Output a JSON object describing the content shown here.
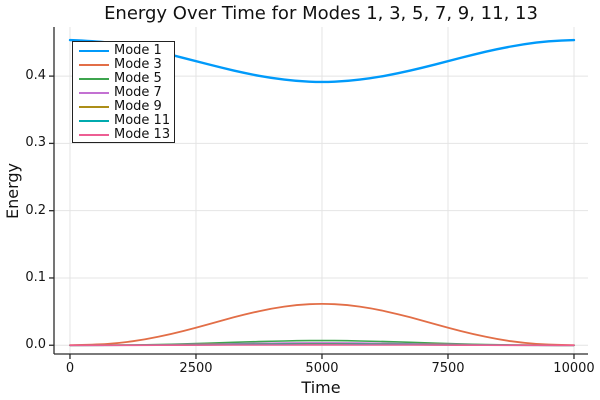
{
  "page": {
    "background": "#FFFFFF",
    "text_color": "#111111",
    "grid_color": "#E4E4E4",
    "axis_color": "#2B2B2B"
  },
  "chart_data": {
    "type": "line",
    "title": "Energy Over Time for Modes 1, 3, 5, 7, 9, 11, 13",
    "xlabel": "Time",
    "ylabel": "Energy",
    "grid": true,
    "legend_position": "top-left",
    "xlim": [
      -317,
      10278
    ],
    "ylim": [
      -0.013,
      0.473
    ],
    "x_ticks": {
      "values": [
        0,
        2500,
        5000,
        7500,
        10000
      ],
      "labels": [
        "0",
        "2500",
        "5000",
        "7500",
        "10000"
      ]
    },
    "y_ticks": {
      "values": [
        0.0,
        0.1,
        0.2,
        0.3,
        0.4
      ],
      "labels": [
        "0.0",
        "0.1",
        "0.2",
        "0.3",
        "0.4"
      ]
    },
    "x": [
      0,
      500,
      1000,
      1500,
      2000,
      2500,
      3000,
      3500,
      4000,
      4500,
      5000,
      5500,
      6000,
      6500,
      7000,
      7500,
      8000,
      8500,
      9000,
      9500,
      10000
    ],
    "series": [
      {
        "name": "Mode 1",
        "color": "#009AFA",
        "width": 2.4,
        "values": [
          0.4535,
          0.452,
          0.4475,
          0.4406,
          0.4319,
          0.4223,
          0.4126,
          0.4039,
          0.397,
          0.3925,
          0.391,
          0.3925,
          0.397,
          0.4039,
          0.4126,
          0.4223,
          0.4319,
          0.4406,
          0.4475,
          0.452,
          0.4535
        ]
      },
      {
        "name": "Mode 3",
        "color": "#E26E47",
        "width": 1.8,
        "values": [
          0.0002,
          0.0008,
          0.0033,
          0.0086,
          0.0164,
          0.0261,
          0.0365,
          0.0465,
          0.0547,
          0.0601,
          0.062,
          0.0601,
          0.0547,
          0.0465,
          0.0365,
          0.0261,
          0.0164,
          0.0086,
          0.0033,
          0.0008,
          0.0002
        ]
      },
      {
        "name": "Mode 5",
        "color": "#3DA44E",
        "width": 1.6,
        "values": [
          0.0,
          0.0,
          0.0002,
          0.0007,
          0.0014,
          0.0025,
          0.0037,
          0.005,
          0.006,
          0.0067,
          0.007,
          0.0067,
          0.006,
          0.005,
          0.0037,
          0.0025,
          0.0014,
          0.0007,
          0.0002,
          0.0,
          0.0
        ]
      },
      {
        "name": "Mode 7",
        "color": "#C371D2",
        "width": 1.6,
        "values": [
          0.0,
          0.0,
          0.0001,
          0.0003,
          0.0007,
          0.0012,
          0.0019,
          0.0025,
          0.003,
          0.0034,
          0.0035,
          0.0034,
          0.003,
          0.0025,
          0.0019,
          0.0012,
          0.0007,
          0.0003,
          0.0001,
          0.0,
          0.0
        ]
      },
      {
        "name": "Mode 9",
        "color": "#AC8E18",
        "width": 1.6,
        "values": [
          0.0,
          0.0,
          0.0001,
          0.0002,
          0.0004,
          0.0007,
          0.0011,
          0.0014,
          0.0017,
          0.0019,
          0.002,
          0.0019,
          0.0017,
          0.0014,
          0.0011,
          0.0007,
          0.0004,
          0.0002,
          0.0001,
          0.0,
          0.0
        ]
      },
      {
        "name": "Mode 11",
        "color": "#00AAAE",
        "width": 1.6,
        "values": [
          0.0,
          0.0,
          0.0,
          0.0001,
          0.0003,
          0.0005,
          0.0008,
          0.0011,
          0.0013,
          0.0014,
          0.0015,
          0.0014,
          0.0013,
          0.0011,
          0.0008,
          0.0005,
          0.0003,
          0.0001,
          0.0,
          0.0,
          0.0
        ]
      },
      {
        "name": "Mode 13",
        "color": "#ED5E93",
        "width": 1.6,
        "values": [
          0.0,
          0.0,
          0.0,
          0.0,
          0.0001,
          0.0002,
          0.0003,
          0.0004,
          0.0004,
          0.0005,
          0.0005,
          0.0005,
          0.0004,
          0.0004,
          0.0003,
          0.0002,
          0.0001,
          0.0,
          0.0,
          0.0,
          0.0
        ]
      }
    ]
  }
}
